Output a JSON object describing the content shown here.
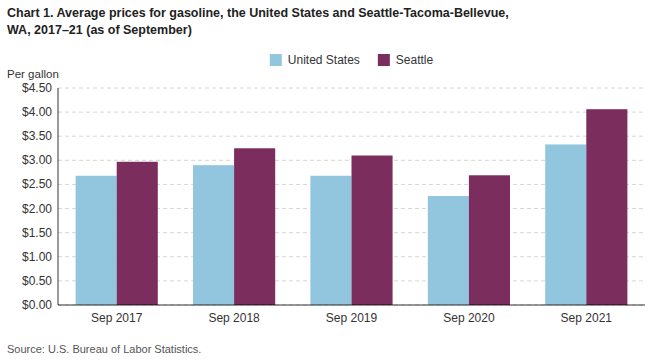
{
  "chart_data": {
    "type": "bar",
    "title": "Chart 1. Average prices for gasoline, the United States and Seattle-Tacoma-Bellevue,",
    "subtitle": "WA, 2017–21 (as of September)",
    "ylabel": "Per gallon",
    "source": "Source: U.S. Bureau of Labor Statistics.",
    "categories": [
      "Sep 2017",
      "Sep 2018",
      "Sep 2019",
      "Sep 2020",
      "Sep 2021"
    ],
    "series": [
      {
        "name": "United States",
        "color": "#92C5DE",
        "values": [
          2.68,
          2.9,
          2.68,
          2.26,
          3.33
        ]
      },
      {
        "name": "Seattle",
        "color": "#7B2D5E",
        "values": [
          2.97,
          3.25,
          3.1,
          2.69,
          4.06
        ]
      }
    ],
    "ylim": [
      0,
      4.5
    ],
    "yticks": [
      {
        "value": 0.0,
        "label": "$0.00"
      },
      {
        "value": 0.5,
        "label": "$0.50"
      },
      {
        "value": 1.0,
        "label": "$1.00"
      },
      {
        "value": 1.5,
        "label": "$1.50"
      },
      {
        "value": 2.0,
        "label": "$2.00"
      },
      {
        "value": 2.5,
        "label": "$2.50"
      },
      {
        "value": 3.0,
        "label": "$3.00"
      },
      {
        "value": 3.5,
        "label": "$3.50"
      },
      {
        "value": 4.0,
        "label": "$4.00"
      },
      {
        "value": 4.5,
        "label": "$4.50"
      }
    ],
    "grid": true,
    "legend": "top"
  }
}
